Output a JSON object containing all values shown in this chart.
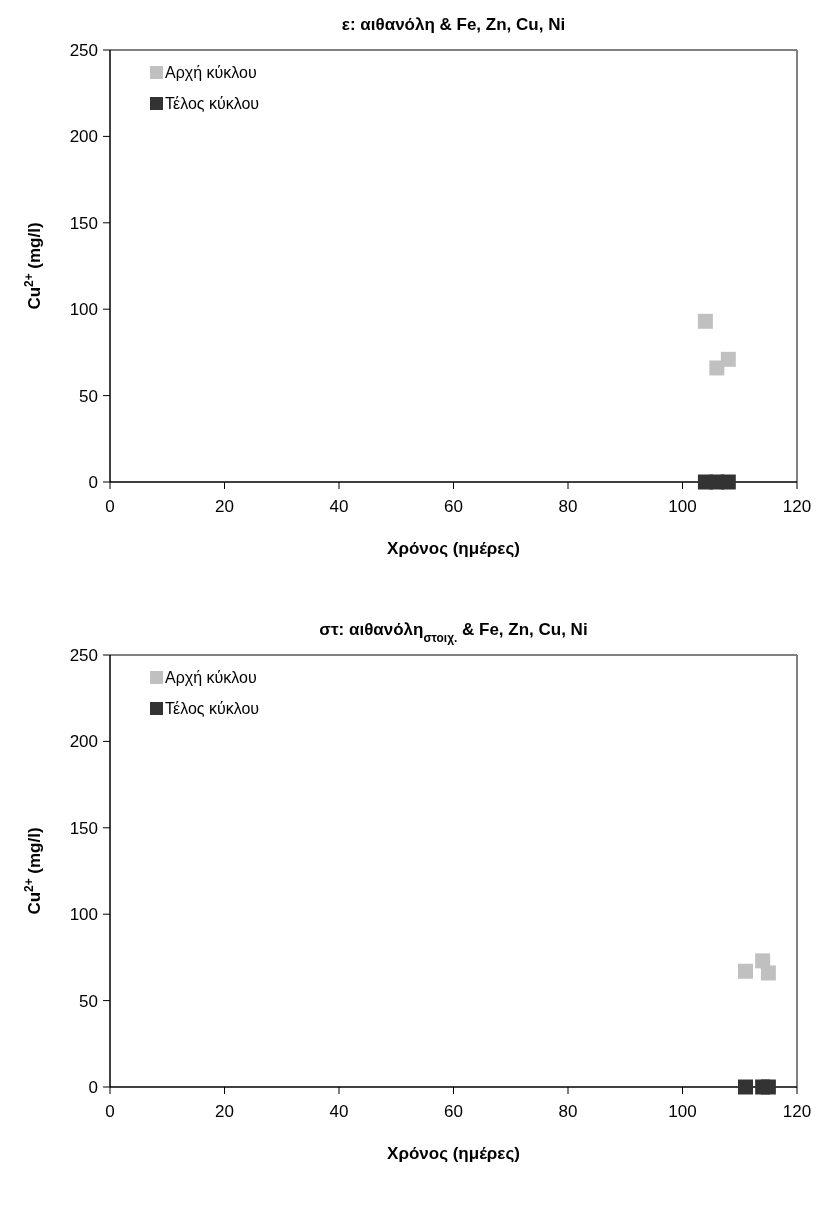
{
  "chart_data": [
    {
      "type": "scatter",
      "title": "ε: αιθανόλη & Fe, Zn, Cu, Ni",
      "xlabel": "Χρόνος (ημέρες)",
      "ylabel": "Cu$^{2+}$ (mg/l)",
      "xlim": [
        0,
        120
      ],
      "xticks": [
        0,
        20,
        40,
        60,
        80,
        100,
        120
      ],
      "ylim": [
        0,
        250
      ],
      "yticks": [
        0,
        50,
        100,
        150,
        200,
        250
      ],
      "marker": "square",
      "legend": "top left",
      "grid": false,
      "series": [
        {
          "name": "Αρχή κύκλου",
          "color": "#c0c0c0",
          "x": [
            104,
            106,
            108
          ],
          "values": [
            93,
            66,
            71
          ]
        },
        {
          "name": "Τέλος κύκλου",
          "color": "#333333",
          "x": [
            104,
            106,
            108
          ],
          "values": [
            0,
            0,
            0
          ]
        }
      ]
    },
    {
      "type": "scatter",
      "title": "στ: αιθανόλη$_{στοιχ.}$ & Fe, Zn, Cu, Ni",
      "xlabel": "Χρόνος (ημέρες)",
      "ylabel": "Cu$^{2+}$ (mg/l)",
      "xlim": [
        0,
        120
      ],
      "xticks": [
        0,
        20,
        40,
        60,
        80,
        100,
        120
      ],
      "ylim": [
        0,
        250
      ],
      "yticks": [
        0,
        50,
        100,
        150,
        200,
        250
      ],
      "marker": "square",
      "legend": "top left",
      "grid": false,
      "series": [
        {
          "name": "Αρχή κύκλου",
          "color": "#c0c0c0",
          "x": [
            111,
            114,
            115
          ],
          "values": [
            67,
            73,
            66
          ]
        },
        {
          "name": "Τέλος κύκλου",
          "color": "#333333",
          "x": [
            111,
            114,
            115
          ],
          "values": [
            0,
            0,
            0
          ]
        }
      ]
    }
  ]
}
